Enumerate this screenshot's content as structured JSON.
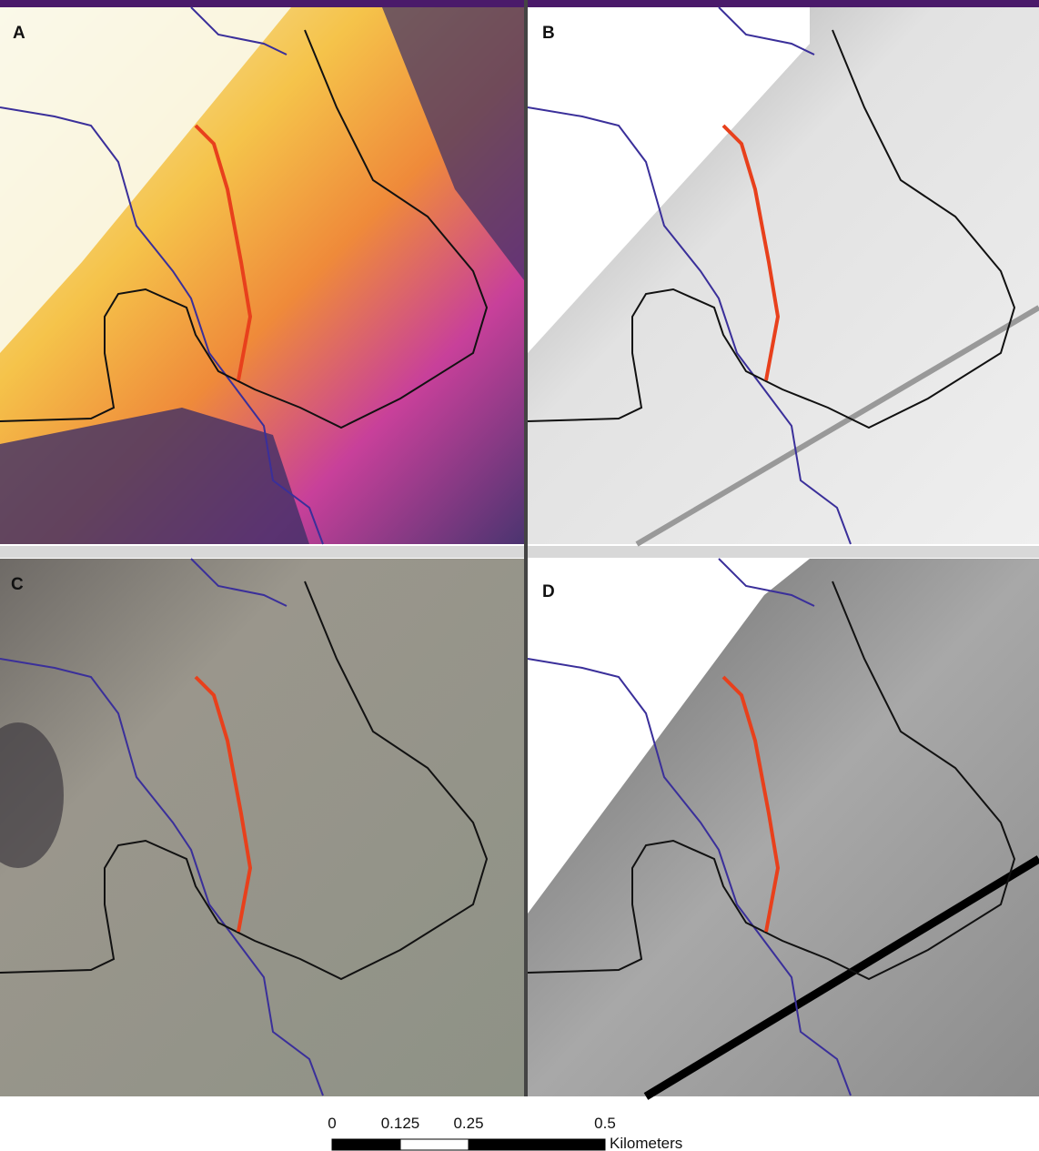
{
  "panels": [
    {
      "label": "A"
    },
    {
      "label": "B"
    },
    {
      "label": "C"
    },
    {
      "label": "D"
    }
  ],
  "scale_bar": {
    "ticks": [
      0,
      0.125,
      0.25,
      0.5
    ],
    "unit": "Kilometers"
  }
}
